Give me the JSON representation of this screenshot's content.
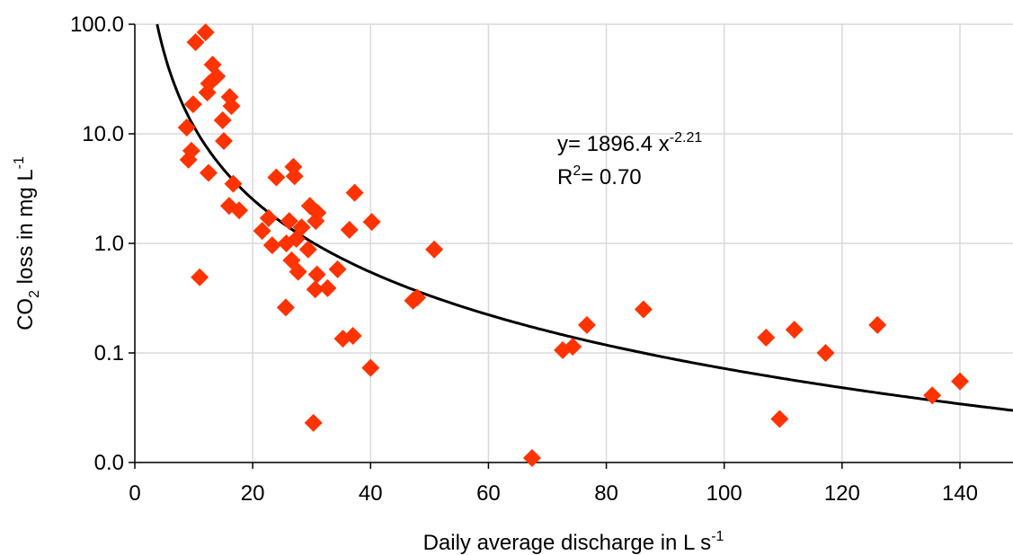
{
  "chart_data": {
    "type": "scatter",
    "x_label": "Daily average discharge in L s",
    "x_label_sup": "-1",
    "y_label": "CO",
    "y_label_sub": "2",
    "y_label_rest": " loss in mg L",
    "y_label_sup": "-1",
    "annotation": {
      "line1": "y= 1896.4 x",
      "line1_sup": "-2.21",
      "line2": "R",
      "line2_sup": "2",
      "line2_rest": "= 0.70"
    },
    "fit": {
      "coefficient": 1896.4,
      "exponent": -2.21,
      "color": "#000000"
    },
    "xlim": [
      0,
      149
    ],
    "ylim": [
      0.01,
      100
    ],
    "log_y": true,
    "grid": true,
    "xticks": [
      0,
      20,
      40,
      60,
      80,
      100,
      120,
      140
    ],
    "yticks": [
      {
        "value": 0.01,
        "label": "0.0"
      },
      {
        "value": 0.1,
        "label": "0.1"
      },
      {
        "value": 1,
        "label": "1.0"
      },
      {
        "value": 10,
        "label": "10.0"
      },
      {
        "value": 100,
        "label": "100.0"
      }
    ],
    "series": [
      {
        "color": "#ff3300",
        "x": [
          10.3,
          12.0,
          13.2,
          13.9,
          12.6,
          12.3,
          16.1,
          16.4,
          9.9,
          8.8,
          14.9,
          15.1,
          9.6,
          9.1,
          12.5,
          16.7,
          16.0,
          17.7,
          24.0,
          26.9,
          27.1,
          37.3,
          29.7,
          31.0,
          30.7,
          22.7,
          21.6,
          26.2,
          28.3,
          27.4,
          25.7,
          29.4,
          23.3,
          26.6,
          27.7,
          36.4,
          40.2,
          50.8,
          34.4,
          30.9,
          30.6,
          32.7,
          47.2,
          47.9,
          11.0,
          25.6,
          35.3,
          37.0,
          40.0,
          30.3,
          67.4,
          72.6,
          74.3,
          76.7,
          86.3,
          107.1,
          111.9,
          117.2,
          126.0,
          109.4,
          135.3,
          140.0
        ],
        "values": [
          68.6,
          84.4,
          42.8,
          33.5,
          28.8,
          23.8,
          21.7,
          17.9,
          18.6,
          11.4,
          13.3,
          8.6,
          7.0,
          5.8,
          4.4,
          3.5,
          2.2,
          2.0,
          4.0,
          5.0,
          4.1,
          2.9,
          2.2,
          1.9,
          1.6,
          1.7,
          1.3,
          1.6,
          1.4,
          1.1,
          1.0,
          0.88,
          0.96,
          0.7,
          0.55,
          1.33,
          1.57,
          0.88,
          0.58,
          0.52,
          0.38,
          0.39,
          0.3,
          0.32,
          0.49,
          0.26,
          0.135,
          0.143,
          0.073,
          0.023,
          0.011,
          0.106,
          0.114,
          0.18,
          0.25,
          0.138,
          0.163,
          0.1,
          0.18,
          0.025,
          0.041,
          0.055
        ]
      }
    ]
  }
}
